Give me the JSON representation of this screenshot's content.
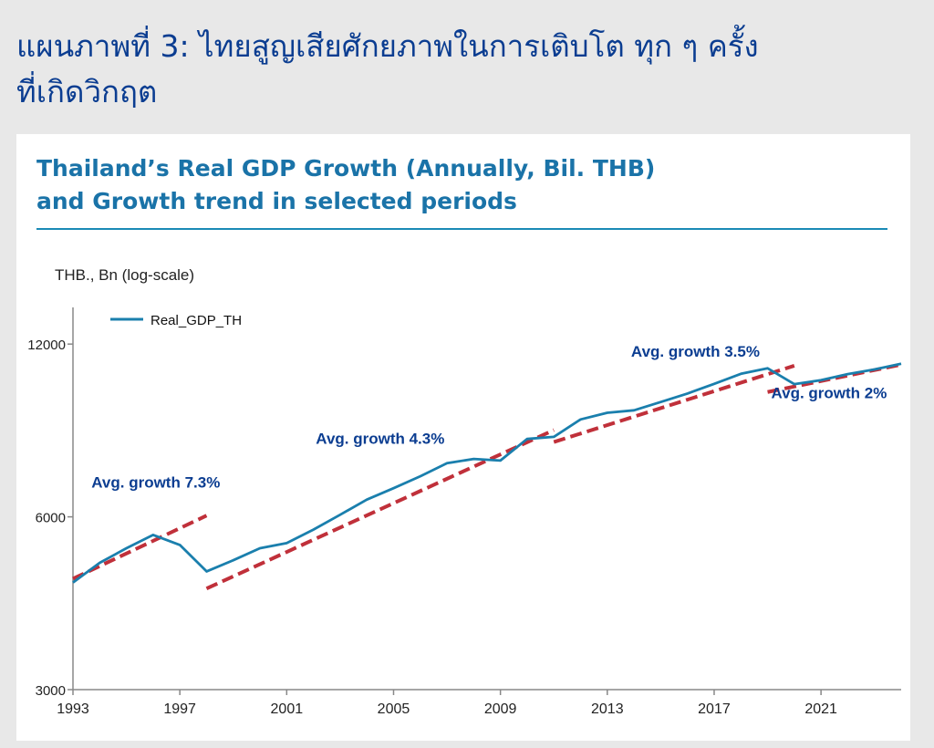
{
  "heading": {
    "line1": "แผนภาพที่ 3: ไทยสูญเสียศักยภาพในการเติบโต ทุก ๆ ครั้ง",
    "line2": "ที่เกิดวิกฤต"
  },
  "chart_data": {
    "type": "line",
    "title_line1": "Thailand’s Real GDP Growth (Annually, Bil. THB)",
    "title_line2": "and Growth trend in selected periods",
    "ylabel": "THB., Bn (log-scale)",
    "yscale": "log",
    "ylim": [
      3000,
      13500
    ],
    "xlim": [
      1993,
      2024
    ],
    "yticks": [
      3000,
      6000,
      12000
    ],
    "ytick_labels": [
      "3000",
      "6000",
      "12000"
    ],
    "xticks": [
      1993,
      1997,
      2001,
      2005,
      2009,
      2013,
      2017,
      2021
    ],
    "xtick_labels": [
      "1993",
      "1997",
      "2001",
      "2005",
      "2009",
      "2013",
      "2017",
      "2021"
    ],
    "grid": false,
    "legend": "top-left",
    "colors": {
      "series": "#1a7fad",
      "trend": "#c0303a",
      "annotation": "#0b3d91"
    },
    "series": [
      {
        "name": "Real_GDP_TH",
        "x": [
          1993,
          1994,
          1995,
          1996,
          1997,
          1998,
          1999,
          2000,
          2001,
          2002,
          2003,
          2004,
          2005,
          2006,
          2007,
          2008,
          2009,
          2010,
          2011,
          2012,
          2013,
          2014,
          2015,
          2016,
          2017,
          2018,
          2019,
          2020,
          2021,
          2022,
          2023,
          2024
        ],
        "y": [
          4610,
          4990,
          5290,
          5580,
          5360,
          4820,
          5040,
          5290,
          5400,
          5700,
          6050,
          6430,
          6730,
          7060,
          7440,
          7570,
          7520,
          8200,
          8270,
          8870,
          9110,
          9200,
          9510,
          9840,
          10230,
          10650,
          10890,
          10220,
          10380,
          10640,
          10840,
          11090
        ]
      }
    ],
    "trends": [
      {
        "x": [
          1993,
          1998
        ],
        "y": [
          4680,
          6030
        ]
      },
      {
        "x": [
          1998,
          2011
        ],
        "y": [
          4500,
          8500
        ]
      },
      {
        "x": [
          2011,
          2020
        ],
        "y": [
          8100,
          11000
        ]
      },
      {
        "x": [
          2019,
          2024
        ],
        "y": [
          9900,
          11050
        ]
      }
    ],
    "annotations": [
      {
        "text": "Avg. growth 7.3%",
        "x": 1996.1,
        "y": 6750
      },
      {
        "text": "Avg. growth 4.3%",
        "x": 2004.5,
        "y": 8050
      },
      {
        "text": "Avg. growth 3.5%",
        "x": 2016.3,
        "y": 11400
      },
      {
        "text": "Avg. growth 2%",
        "x": 2021.3,
        "y": 9650
      }
    ]
  }
}
